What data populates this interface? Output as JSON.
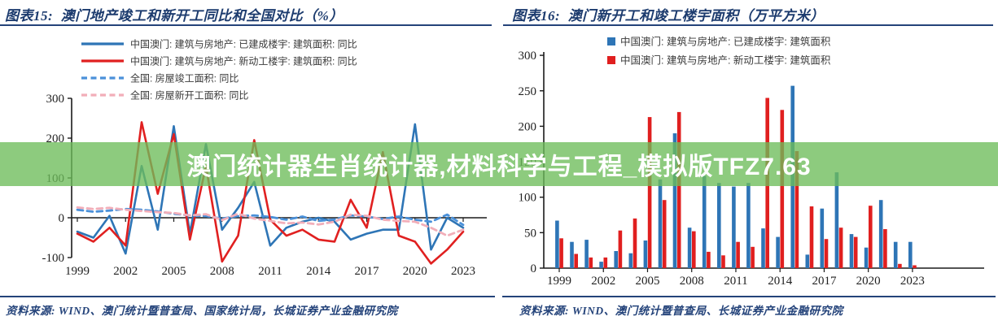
{
  "banner": {
    "text": "澳门统计器生肖统计器,材料科学与工程_模拟版TFZ7.63",
    "bg_color": "#6DBC5A",
    "bg_opacity": 0.78,
    "text_color": "#FFFFFF"
  },
  "left_panel": {
    "figure_label": "图表15:",
    "title": "澳门地产竣工和新开工同比和全国对比（%）",
    "source": "资料来源: WIND、澳门统计暨普查局、国家统计局，长城证券产业金融研究院"
  },
  "right_panel": {
    "figure_label": "图表16:",
    "title": "澳门新开工和竣工楼宇面积（万平方米）",
    "source": "资料来源: WIND、澳门统计暨普查局、长城证券产业金融研究院"
  },
  "accent_colors": {
    "navy": "#1C3B6E",
    "rule_navy": "#24437A",
    "macau_blue": "#2E75B6",
    "macau_red": "#E02020",
    "national_blue_dashed": "#4A90D9",
    "national_pink_dashed": "#F2AEB9",
    "banner_green": "#6DBC5A",
    "axis_black": "#1a1a1a"
  },
  "chart_data": [
    {
      "type": "line",
      "title": "澳门地产竣工和新开工同比和全国对比（%）",
      "xlabel": "",
      "ylabel": "",
      "x": [
        1999,
        2000,
        2001,
        2002,
        2003,
        2004,
        2005,
        2006,
        2007,
        2008,
        2009,
        2010,
        2011,
        2012,
        2013,
        2014,
        2015,
        2016,
        2017,
        2018,
        2019,
        2020,
        2021,
        2022,
        2023
      ],
      "x_tick_labels": [
        "1999",
        "2002",
        "2005",
        "2008",
        "2011",
        "2014",
        "2017",
        "2020",
        "2023"
      ],
      "ylim": [
        -100,
        300
      ],
      "yticks": [
        300,
        200,
        100,
        0,
        -100
      ],
      "grid": false,
      "legend_position": "top-left",
      "series": [
        {
          "name": "中国澳门: 建筑与房地产: 已建成楼宇: 建筑面积: 同比",
          "color": "#2E75B6",
          "dash": false,
          "values": [
            -35,
            -50,
            5,
            -90,
            130,
            -30,
            230,
            -40,
            185,
            -30,
            25,
            90,
            -70,
            -25,
            -10,
            0,
            -10,
            -55,
            -40,
            -30,
            -30,
            235,
            -80,
            0,
            -25
          ]
        },
        {
          "name": "中国澳门: 建筑与房地产: 新动工楼宇: 建筑面积: 同比",
          "color": "#E02020",
          "dash": false,
          "values": [
            -40,
            -60,
            -25,
            -70,
            240,
            60,
            210,
            -55,
            130,
            -110,
            -45,
            195,
            -5,
            -45,
            -30,
            -55,
            -60,
            45,
            -25,
            165,
            -45,
            -60,
            -115,
            -80,
            -35
          ]
        },
        {
          "name": "全国: 房屋竣工面积: 同比",
          "color": "#4A90D9",
          "dash": true,
          "values": [
            20,
            15,
            18,
            22,
            20,
            16,
            10,
            6,
            4,
            -2,
            4,
            6,
            2,
            -5,
            3,
            -8,
            -4,
            6,
            3,
            -3,
            3,
            -5,
            -10,
            8,
            -18
          ]
        },
        {
          "name": "全国: 房屋新开工面积: 同比",
          "color": "#F2AEB9",
          "dash": true,
          "values": [
            26,
            22,
            25,
            20,
            17,
            14,
            12,
            6,
            9,
            -6,
            10,
            -2,
            -8,
            -14,
            -12,
            -17,
            -10,
            8,
            5,
            -5,
            -8,
            -10,
            -25,
            -45,
            -30
          ]
        }
      ]
    },
    {
      "type": "bar",
      "title": "澳门新开工和竣工楼宇面积（万平方米）",
      "xlabel": "",
      "ylabel": "",
      "x": [
        1999,
        2000,
        2001,
        2002,
        2003,
        2004,
        2005,
        2006,
        2007,
        2008,
        2009,
        2010,
        2011,
        2012,
        2013,
        2014,
        2015,
        2016,
        2017,
        2018,
        2019,
        2020,
        2021,
        2022,
        2023
      ],
      "x_tick_labels": [
        "1999",
        "2002",
        "2005",
        "2008",
        "2011",
        "2014",
        "2017",
        "2020",
        "2023"
      ],
      "ylim": [
        0,
        300
      ],
      "yticks": [
        0,
        50,
        100,
        150,
        200,
        250,
        300
      ],
      "grid": false,
      "legend_position": "top",
      "series": [
        {
          "name": "中国澳门: 建筑与房地产: 已建成楼宇: 建筑面积",
          "color": "#2E75B6",
          "values": [
            67,
            37,
            40,
            9,
            24,
            21,
            39,
            125,
            190,
            57,
            130,
            120,
            115,
            120,
            56,
            44,
            257,
            19,
            84,
            135,
            48,
            29,
            96,
            37,
            37
          ]
        },
        {
          "name": "中国澳门: 建筑与房地产: 新动工楼宇: 建筑面积",
          "color": "#E01F1F",
          "values": [
            42,
            20,
            15,
            15,
            53,
            70,
            213,
            96,
            220,
            52,
            23,
            18,
            37,
            30,
            240,
            223,
            165,
            87,
            41,
            57,
            44,
            88,
            55,
            6,
            4
          ]
        }
      ]
    }
  ]
}
